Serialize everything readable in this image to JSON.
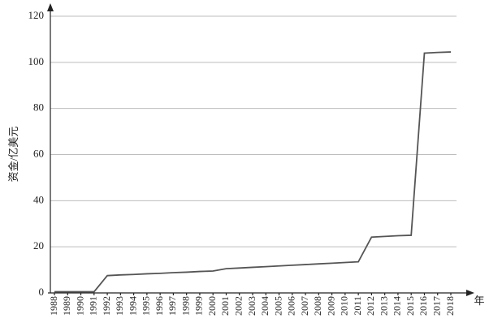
{
  "chart_data": {
    "type": "line",
    "y_label": "资金/亿美元",
    "x_label": "年",
    "categories": [
      "1988",
      "1989",
      "1990",
      "1991",
      "1992",
      "1993",
      "1994",
      "1995",
      "1996",
      "1997",
      "1998",
      "1999",
      "2000",
      "2001",
      "2002",
      "2003",
      "2004",
      "2005",
      "2006",
      "2007",
      "2008",
      "2009",
      "2010",
      "2011",
      "2012",
      "2013",
      "2014",
      "2015",
      "2016",
      "2017",
      "2018"
    ],
    "series": [
      {
        "color": "#555555",
        "values": [
          0.5,
          0.5,
          0.5,
          0.5,
          7.5,
          7.8,
          8.0,
          8.3,
          8.5,
          8.8,
          9.0,
          9.3,
          9.5,
          10.5,
          10.8,
          11.1,
          11.4,
          11.7,
          12.0,
          12.3,
          12.6,
          12.9,
          13.2,
          13.5,
          24.2,
          24.5,
          24.8,
          25.0,
          104,
          104.3,
          104.5
        ]
      }
    ],
    "ylim": [
      0,
      120
    ],
    "yticks": [
      0,
      20,
      40,
      60,
      80,
      100,
      120
    ],
    "grid": true
  }
}
